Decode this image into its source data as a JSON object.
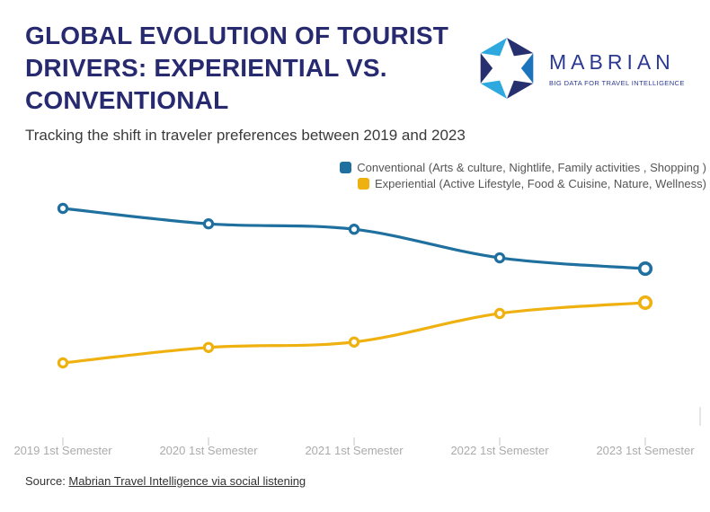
{
  "header": {
    "title_lines": [
      "GLOBAL EVOLUTION OF TOURIST",
      "DRIVERS: EXPERIENTIAL VS.",
      "CONVENTIONAL"
    ],
    "subtitle": "Tracking the shift in traveler preferences between 2019 and 2023"
  },
  "logo": {
    "wordmark": "MABRIAN",
    "tagline": "BIG DATA FOR TRAVEL INTELLIGENCE",
    "colors": {
      "sky": "#2EA9E0",
      "blue": "#1C75BC",
      "navy": "#27306E"
    }
  },
  "legend": [
    {
      "label": "Conventional (Arts & culture, Nightlife, Family activities , Shopping )",
      "color": "#1F709F"
    },
    {
      "label": "Experiential (Active Lifestyle, Food & Cuisine, Nature, Wellness)",
      "color": "#EFB110"
    }
  ],
  "chart_data": {
    "type": "line",
    "categories": [
      "2019 1st Semester",
      "2020 1st Semester",
      "2021 1st Semester",
      "2022 1st Semester",
      "2023 1st Semester"
    ],
    "series": [
      {
        "name": "Conventional (Arts & culture, Nightlife, Family activities , Shopping )",
        "color": "#1F709F",
        "values": [
          60,
          58,
          57.3,
          53.6,
          52.2
        ]
      },
      {
        "name": "Experiential (Active Lifestyle, Food & Cuisine, Nature, Wellness)",
        "color": "#EFB110",
        "values": [
          40,
          42,
          42.7,
          46.4,
          47.8
        ]
      }
    ],
    "title": "Global evolution of tourist drivers: experiential vs. conventional",
    "xlabel": "",
    "ylabel": "",
    "ylim": [
      35,
      65
    ],
    "grid": false,
    "legend_position": "top-right",
    "note": "No y-axis shown in figure; values are estimated % share, series sum to 100"
  },
  "axis": {
    "tick_color": "#D9D9D9",
    "label_color": "#ABABAB"
  },
  "footer": {
    "source_prefix": "Source: ",
    "source_link": "Mabrian Travel Intelligence via social listening"
  }
}
